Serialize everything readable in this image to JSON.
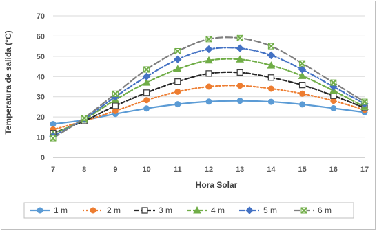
{
  "chart_data": {
    "type": "line",
    "xlabel": "Hora Solar",
    "ylabel": "Temperatura de salida (°C)",
    "x": [
      7,
      8,
      9,
      10,
      11,
      12,
      13,
      14,
      15,
      16,
      17
    ],
    "xlim": [
      7,
      17
    ],
    "ylim": [
      0,
      70
    ],
    "yticks": [
      0,
      10,
      20,
      30,
      40,
      50,
      60,
      70
    ],
    "grid": "horizontal",
    "legend_position": "bottom",
    "series": [
      {
        "name": "1 m",
        "color": "#5b9bd5",
        "dash": "solid",
        "marker": "circle",
        "values": [
          16.5,
          18.5,
          21.5,
          24.2,
          26.3,
          27.6,
          28.0,
          27.5,
          26.2,
          24.3,
          22.3
        ]
      },
      {
        "name": "2 m",
        "color": "#ed7d31",
        "dash": "dot",
        "marker": "circle",
        "values": [
          13.8,
          18.0,
          23.0,
          28.3,
          32.5,
          35.0,
          35.5,
          34.0,
          31.5,
          28.0,
          23.5
        ]
      },
      {
        "name": "3 m",
        "color": "#262626",
        "dash": "dash",
        "marker": "square",
        "values": [
          12.0,
          18.0,
          25.5,
          32.0,
          37.5,
          41.5,
          42.0,
          39.5,
          35.8,
          30.5,
          24.5
        ]
      },
      {
        "name": "4 m",
        "color": "#70ad47",
        "dash": "dash",
        "marker": "triangle",
        "values": [
          11.5,
          18.7,
          28.5,
          37.0,
          43.7,
          48.0,
          48.5,
          45.5,
          40.3,
          33.0,
          25.0
        ]
      },
      {
        "name": "5 m",
        "color": "#4472c4",
        "dash": "dashdot",
        "marker": "diamond",
        "values": [
          10.5,
          19.0,
          30.0,
          40.0,
          48.5,
          53.5,
          54.0,
          50.5,
          43.5,
          35.0,
          26.5
        ]
      },
      {
        "name": "6 m",
        "color": "#7f7f7f",
        "dash": "longdash",
        "marker": "x",
        "markerColor": "#70ad47",
        "values": [
          9.5,
          19.5,
          31.5,
          43.5,
          52.5,
          58.5,
          59.0,
          55.0,
          46.5,
          37.0,
          27.5
        ]
      }
    ]
  }
}
